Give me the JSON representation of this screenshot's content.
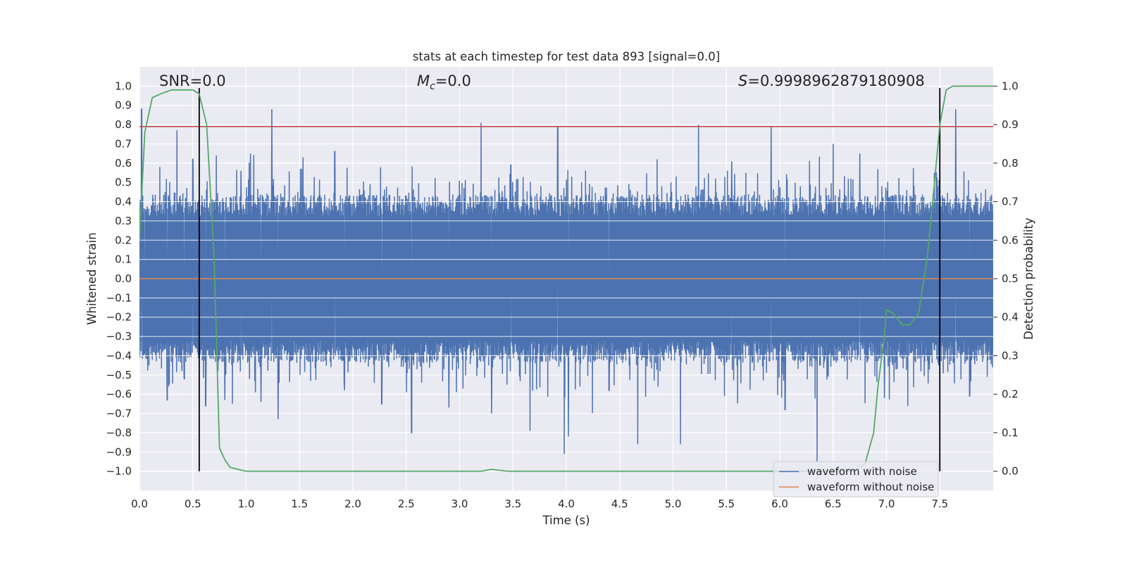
{
  "chart_data": {
    "type": "line",
    "title": "stats at each timestep for test data 893 [signal=0.0]",
    "xlabel": "Time (s)",
    "ylabel": "Whitened strain",
    "y2label": "Detection probability",
    "xlim": [
      0.0,
      8.0
    ],
    "ylim": [
      -1.1,
      1.1
    ],
    "y2lim": [
      -0.05,
      1.05
    ],
    "xticks": [
      "0.0",
      "0.5",
      "1.0",
      "1.5",
      "2.0",
      "2.5",
      "3.0",
      "3.5",
      "4.0",
      "4.5",
      "5.0",
      "5.5",
      "6.0",
      "6.5",
      "7.0",
      "7.5"
    ],
    "yticks": [
      "1.0",
      "0.9",
      "0.8",
      "0.7",
      "0.6",
      "0.5",
      "0.4",
      "0.3",
      "0.2",
      "0.1",
      "0.0",
      "−0.1",
      "−0.2",
      "−0.3",
      "−0.4",
      "−0.5",
      "−0.6",
      "−0.7",
      "−0.8",
      "−0.9",
      "−1.0"
    ],
    "y2ticks": [
      "0.0",
      "0.1",
      "0.2",
      "0.3",
      "0.4",
      "0.5",
      "0.6",
      "0.7",
      "0.8",
      "0.9",
      "1.0"
    ],
    "grid": true,
    "legend_position": "lower-right",
    "annotations": {
      "snr": "SNR=0.0",
      "mc_symbol": "M",
      "mc_sub": "c",
      "mc_value": "=0.0",
      "s_symbol": "S",
      "s_value": "=0.9998962879180908"
    },
    "threshold_line": {
      "y": 0.79,
      "color": "#c44e52"
    },
    "vertical_lines": [
      0.56,
      7.5
    ],
    "series": [
      {
        "name": "waveform with noise",
        "color": "#4c72b0",
        "envelope": {
          "core": 0.38,
          "spike_peaks": [
            [
              0.02,
              0.88
            ],
            [
              0.05,
              -0.31
            ],
            [
              0.19,
              0.58
            ],
            [
              0.26,
              -0.63
            ],
            [
              0.35,
              0.77
            ],
            [
              0.42,
              -0.52
            ],
            [
              0.5,
              0.62
            ],
            [
              0.62,
              -0.66
            ],
            [
              0.72,
              0.64
            ],
            [
              0.8,
              -0.63
            ],
            [
              0.95,
              0.56
            ],
            [
              1.04,
              0.65
            ],
            [
              1.14,
              -0.64
            ],
            [
              1.24,
              0.88
            ],
            [
              1.3,
              -0.73
            ],
            [
              1.52,
              0.57
            ],
            [
              1.83,
              0.66
            ],
            [
              1.92,
              -0.58
            ],
            [
              2.27,
              -0.65
            ],
            [
              2.55,
              -0.8
            ],
            [
              2.6,
              -0.47
            ],
            [
              2.9,
              -0.67
            ],
            [
              3.2,
              0.81
            ],
            [
              3.3,
              -0.7
            ],
            [
              3.48,
              0.59
            ],
            [
              3.66,
              -0.79
            ],
            [
              3.92,
              0.79
            ],
            [
              3.98,
              -0.91
            ],
            [
              4.02,
              -0.82
            ],
            [
              4.4,
              -0.58
            ],
            [
              4.67,
              -0.86
            ],
            [
              4.85,
              0.62
            ],
            [
              5.07,
              -0.86
            ],
            [
              5.24,
              0.8
            ],
            [
              5.55,
              0.61
            ],
            [
              5.92,
              0.79
            ],
            [
              6.05,
              -0.68
            ],
            [
              6.35,
              -0.95
            ],
            [
              6.5,
              0.7
            ],
            [
              6.75,
              0.65
            ],
            [
              6.98,
              -0.62
            ],
            [
              7.2,
              -0.66
            ],
            [
              7.45,
              0.55
            ],
            [
              7.65,
              0.88
            ],
            [
              7.78,
              -0.61
            ]
          ]
        }
      },
      {
        "name": "waveform without noise",
        "color": "#dd8452",
        "points": [
          [
            0.0,
            0.0
          ],
          [
            8.0,
            0.0
          ]
        ]
      },
      {
        "name": "Detection probability",
        "color": "#55a868",
        "axis": "right",
        "points": [
          [
            0.0,
            0.6
          ],
          [
            0.05,
            0.88
          ],
          [
            0.12,
            0.97
          ],
          [
            0.2,
            0.98
          ],
          [
            0.3,
            0.99
          ],
          [
            0.4,
            0.99
          ],
          [
            0.5,
            0.99
          ],
          [
            0.56,
            0.98
          ],
          [
            0.63,
            0.9
          ],
          [
            0.7,
            0.55
          ],
          [
            0.75,
            0.06
          ],
          [
            0.8,
            0.03
          ],
          [
            0.85,
            0.01
          ],
          [
            1.0,
            0.0
          ],
          [
            2.0,
            0.0
          ],
          [
            3.0,
            0.0
          ],
          [
            3.2,
            0.0
          ],
          [
            3.3,
            0.005
          ],
          [
            3.45,
            0.0
          ],
          [
            4.0,
            0.0
          ],
          [
            5.0,
            0.0
          ],
          [
            6.0,
            0.0
          ],
          [
            6.7,
            0.0
          ],
          [
            6.8,
            0.02
          ],
          [
            6.88,
            0.1
          ],
          [
            6.92,
            0.22
          ],
          [
            6.98,
            0.35
          ],
          [
            7.0,
            0.42
          ],
          [
            7.06,
            0.41
          ],
          [
            7.15,
            0.38
          ],
          [
            7.22,
            0.38
          ],
          [
            7.3,
            0.41
          ],
          [
            7.38,
            0.55
          ],
          [
            7.45,
            0.75
          ],
          [
            7.5,
            0.9
          ],
          [
            7.56,
            0.99
          ],
          [
            7.62,
            1.0
          ],
          [
            8.0,
            1.0
          ]
        ]
      }
    ]
  }
}
